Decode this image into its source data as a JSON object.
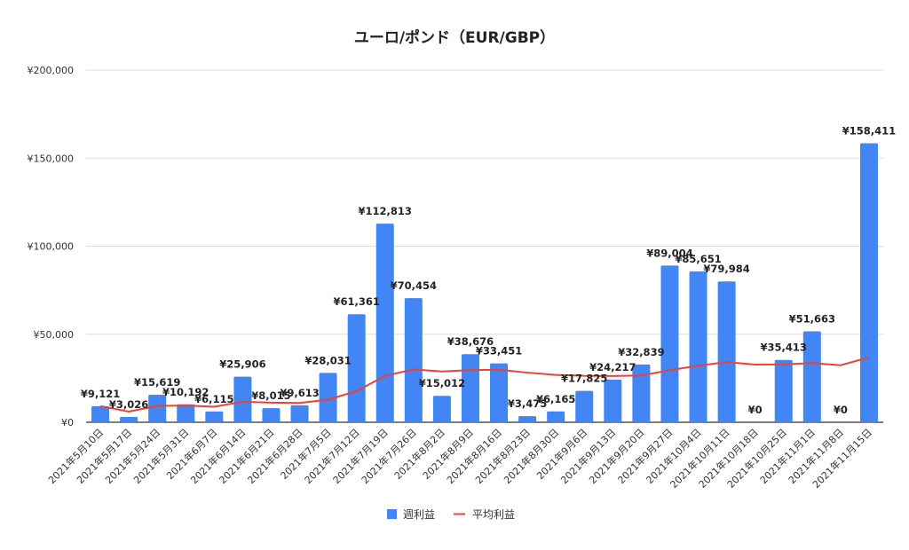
{
  "chart_data": {
    "type": "bar",
    "title": "ユーロ/ポンド（EUR/GBP）",
    "xlabel": "",
    "ylabel": "",
    "ylim": [
      0,
      200000
    ],
    "yticks": [
      0,
      50000,
      100000,
      150000,
      200000
    ],
    "ytick_labels": [
      "¥0",
      "¥50,000",
      "¥100,000",
      "¥150,000",
      "¥200,000"
    ],
    "grid": true,
    "legend_position": "bottom",
    "categories": [
      "2021年5月10日",
      "2021年5月17日",
      "2021年5月24日",
      "2021年5月31日",
      "2021年6月7日",
      "2021年6月14日",
      "2021年6月21日",
      "2021年6月28日",
      "2021年7月5日",
      "2021年7月12日",
      "2021年7月19日",
      "2021年7月26日",
      "2021年8月2日",
      "2021年8月9日",
      "2021年8月16日",
      "2021年8月23日",
      "2021年8月30日",
      "2021年9月6日",
      "2021年9月13日",
      "2021年9月20日",
      "2021年9月27日",
      "2021年10月4日",
      "2021年10月11日",
      "2021年10月18日",
      "2021年10月25日",
      "2021年11月1日",
      "2021年11月8日",
      "2021年11月15日"
    ],
    "series": [
      {
        "name": "週利益",
        "type": "bar",
        "color": "#4285f4",
        "values": [
          9121,
          3026,
          15619,
          10192,
          6115,
          25906,
          8015,
          9613,
          28031,
          61361,
          112813,
          70454,
          15012,
          38676,
          33451,
          3475,
          6165,
          17825,
          24217,
          32839,
          89004,
          85651,
          79984,
          0,
          35413,
          51663,
          0,
          158411
        ],
        "data_labels": [
          "¥9,121",
          "¥3,026",
          "¥15,619",
          "¥10,192",
          "¥6,115",
          "¥25,906",
          "¥8,015",
          "¥9,613",
          "¥28,031",
          "¥61,361",
          "¥112,813",
          "¥70,454",
          "¥15,012",
          "¥38,676",
          "¥33,451",
          "¥3,475",
          "¥6,165",
          "¥17,825",
          "¥24,217",
          "¥32,839",
          "¥89,004",
          "¥85,651",
          "¥79,984",
          "¥0",
          "¥35,413",
          "¥51,663",
          "¥0",
          "¥158,411"
        ]
      },
      {
        "name": "平均利益",
        "type": "line",
        "color": "#ea4335",
        "values": [
          9121,
          6074,
          9255,
          9490,
          8815,
          11663,
          11142,
          10951,
          12849,
          17700,
          26347,
          30022,
          28868,
          29568,
          29827,
          28180,
          26885,
          26382,
          26268,
          26596,
          29568,
          32117,
          34198,
          32774,
          32879,
          33602,
          32357,
          36859
        ]
      }
    ]
  }
}
